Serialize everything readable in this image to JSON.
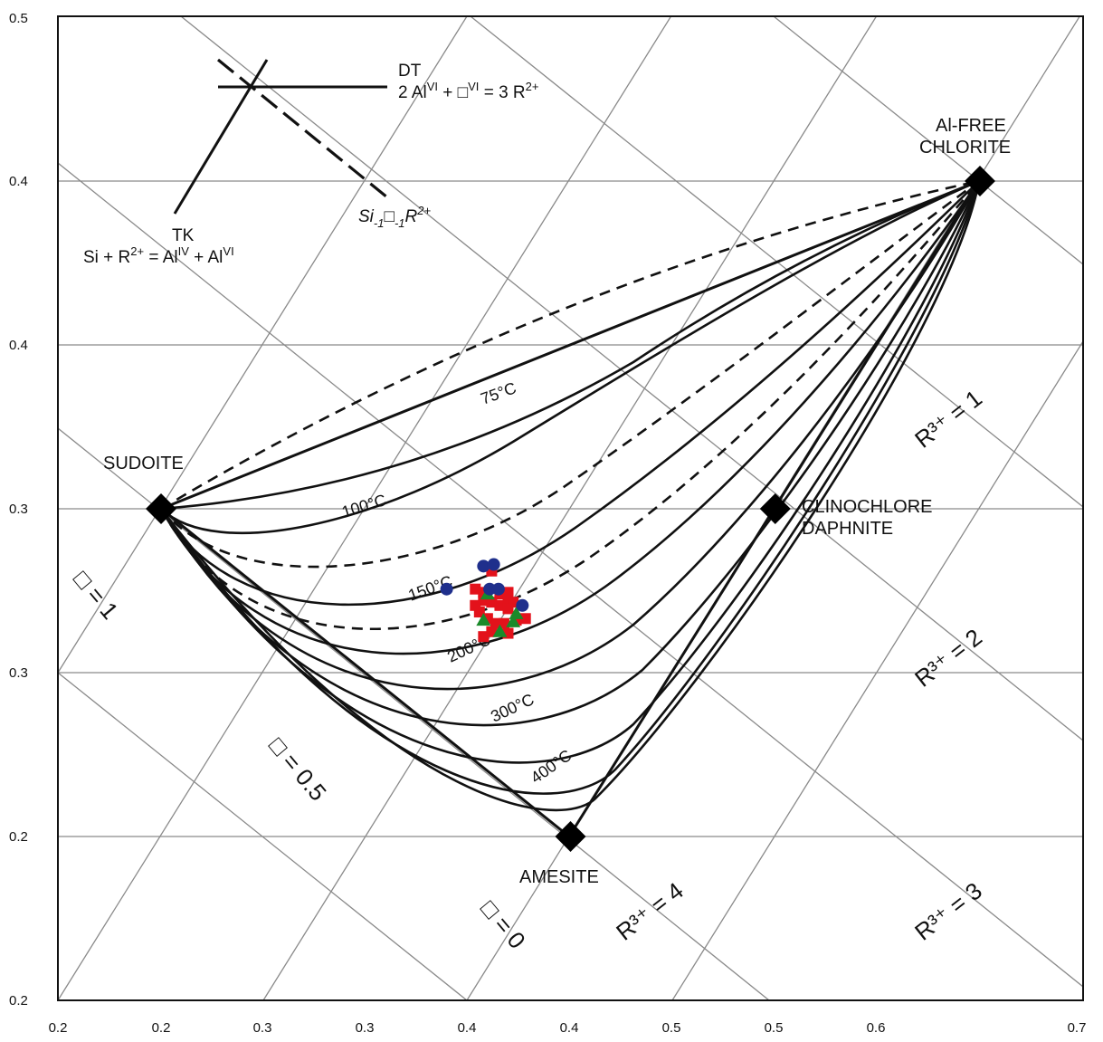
{
  "chart_data": {
    "type": "scatter",
    "x_ticks": [
      "0.2",
      "0.2",
      "0.3",
      "0.3",
      "0.4",
      "0.4",
      "0.5",
      "0.5",
      "0.6",
      "0.7"
    ],
    "y_ticks": [
      "0.2",
      "0.2",
      "0.3",
      "0.3",
      "0.4",
      "0.4",
      "0.5"
    ],
    "xlim": [
      0.15,
      0.65
    ],
    "ylim": [
      0.15,
      0.45
    ],
    "grid": true,
    "end_members": [
      {
        "label_lines": [
          "SUDOITE"
        ],
        "x": 0.2,
        "y": 0.3
      },
      {
        "label_lines": [
          "AMESITE"
        ],
        "x": 0.4,
        "y": 0.2
      },
      {
        "label_lines": [
          "CLINOCHLORE",
          "DAPHNITE"
        ],
        "x": 0.5,
        "y": 0.3
      },
      {
        "label_lines": [
          "Al-FREE",
          "CHLORITE"
        ],
        "x": 0.6,
        "y": 0.4
      }
    ],
    "isotherm_labels": [
      "75°C",
      "100°C",
      "150°C",
      "200°C",
      "300°C",
      "400°C"
    ],
    "vacancy_labels": [
      "□ = 1",
      "□ = 0.5",
      "□ = 0"
    ],
    "r3_labels": [
      "R³⁺ = 1",
      "R³⁺ = 2",
      "R³⁺ = 3",
      "R³⁺ = 4"
    ],
    "substitution_labels": {
      "dt_name": "DT",
      "dt_equation": "2 Al^VI + □^VI = 3 R²⁺",
      "tk_name": "TK",
      "tk_equation": "Si + R²⁺ = Al^IV + Al^VI",
      "di_vector": "Si₋₁□₋₁R²⁺"
    },
    "series": [
      {
        "marker": "circle",
        "color": "#1f2f8c",
        "points": [
          [
            0.3575,
            0.2825
          ],
          [
            0.3625,
            0.283
          ],
          [
            0.3395,
            0.2755
          ],
          [
            0.3605,
            0.2755
          ],
          [
            0.3648,
            0.2755
          ],
          [
            0.3765,
            0.2705
          ]
        ]
      },
      {
        "marker": "square",
        "color": "#e3121b",
        "points": [
          [
            0.3615,
            0.281
          ],
          [
            0.3535,
            0.2755
          ],
          [
            0.3575,
            0.2745
          ],
          [
            0.3695,
            0.2745
          ],
          [
            0.3655,
            0.274
          ],
          [
            0.3695,
            0.2725
          ],
          [
            0.3575,
            0.272
          ],
          [
            0.3615,
            0.2715
          ],
          [
            0.372,
            0.2715
          ],
          [
            0.3535,
            0.2705
          ],
          [
            0.3655,
            0.2705
          ],
          [
            0.3695,
            0.2695
          ],
          [
            0.3555,
            0.2685
          ],
          [
            0.378,
            0.2665
          ],
          [
            0.3595,
            0.2665
          ],
          [
            0.3735,
            0.266
          ],
          [
            0.3635,
            0.265
          ],
          [
            0.3675,
            0.265
          ],
          [
            0.3615,
            0.2625
          ],
          [
            0.3695,
            0.262
          ],
          [
            0.3575,
            0.261
          ]
        ]
      },
      {
        "marker": "triangle",
        "color": "#1a8a2a",
        "points": [
          [
            0.3595,
            0.274
          ],
          [
            0.3575,
            0.266
          ],
          [
            0.3735,
            0.268
          ],
          [
            0.372,
            0.2655
          ],
          [
            0.3655,
            0.2625
          ]
        ]
      }
    ]
  }
}
